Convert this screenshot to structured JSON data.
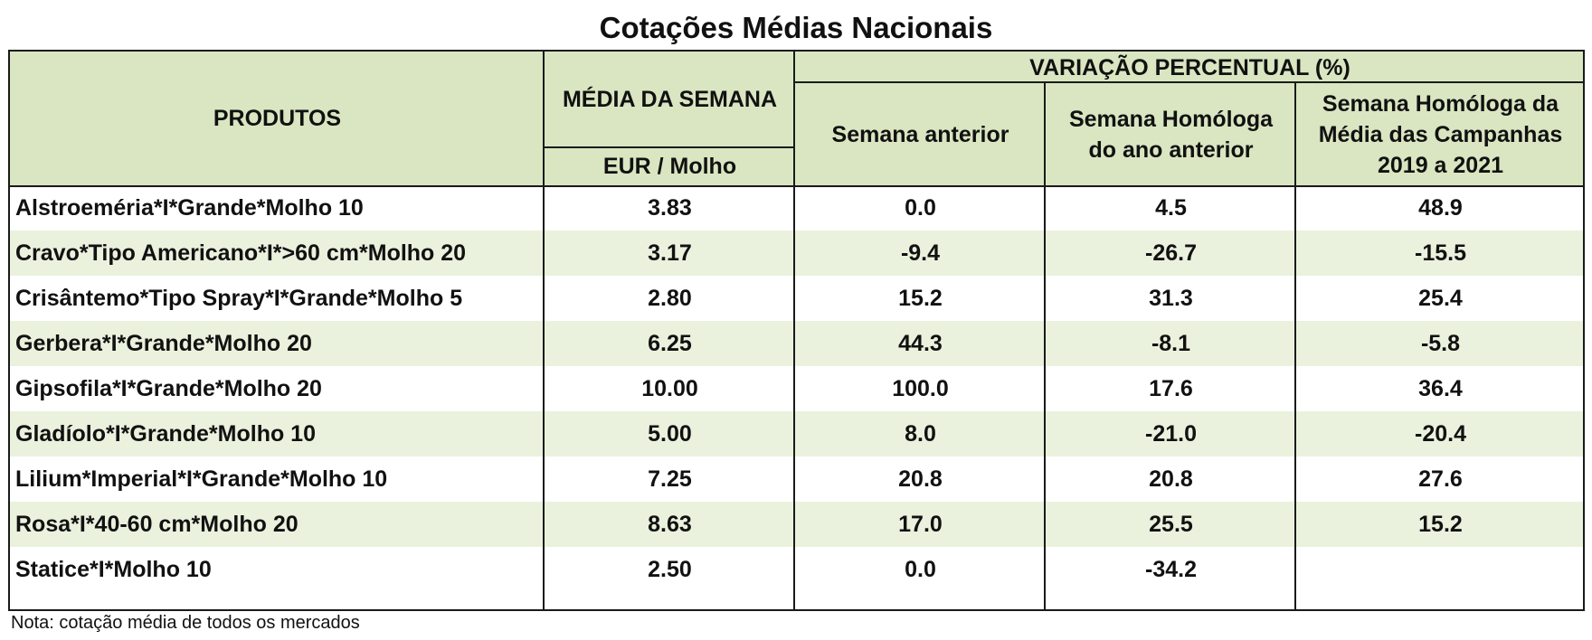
{
  "title": "Cotações Médias Nacionais",
  "headers": {
    "produtos": "PRODUTOS",
    "media_semana": "MÉDIA DA SEMANA",
    "unidade": "EUR / Molho",
    "variacao": "VARIAÇÃO PERCENTUAL (%)",
    "semana_anterior": "Semana anterior",
    "semana_homologa": "Semana Homóloga do ano anterior",
    "semana_homologa_media": "Semana Homóloga da Média das Campanhas 2019 a 2021"
  },
  "rows": [
    {
      "produto": "Alstroeméria*I*Grande*Molho 10",
      "media": "3.83",
      "sem_ant": "0.0",
      "hom_ano": "4.5",
      "hom_media": "48.9"
    },
    {
      "produto": "Cravo*Tipo Americano*I*>60 cm*Molho 20",
      "media": "3.17",
      "sem_ant": "-9.4",
      "hom_ano": "-26.7",
      "hom_media": "-15.5"
    },
    {
      "produto": "Crisântemo*Tipo Spray*I*Grande*Molho 5",
      "media": "2.80",
      "sem_ant": "15.2",
      "hom_ano": "31.3",
      "hom_media": "25.4"
    },
    {
      "produto": "Gerbera*I*Grande*Molho 20",
      "media": "6.25",
      "sem_ant": "44.3",
      "hom_ano": "-8.1",
      "hom_media": "-5.8"
    },
    {
      "produto": "Gipsofila*I*Grande*Molho 20",
      "media": "10.00",
      "sem_ant": "100.0",
      "hom_ano": "17.6",
      "hom_media": "36.4"
    },
    {
      "produto": "Gladíolo*I*Grande*Molho 10",
      "media": "5.00",
      "sem_ant": "8.0",
      "hom_ano": "-21.0",
      "hom_media": "-20.4"
    },
    {
      "produto": "Lilium*Imperial*I*Grande*Molho 10",
      "media": "7.25",
      "sem_ant": "20.8",
      "hom_ano": "20.8",
      "hom_media": "27.6"
    },
    {
      "produto": "Rosa*I*40-60 cm*Molho 20",
      "media": "8.63",
      "sem_ant": "17.0",
      "hom_ano": "25.5",
      "hom_media": "15.2"
    },
    {
      "produto": "Statice*I*Molho 10",
      "media": "2.50",
      "sem_ant": "0.0",
      "hom_ano": "-34.2",
      "hom_media": ""
    }
  ],
  "note": "Nota: cotação média de todos os mercados"
}
